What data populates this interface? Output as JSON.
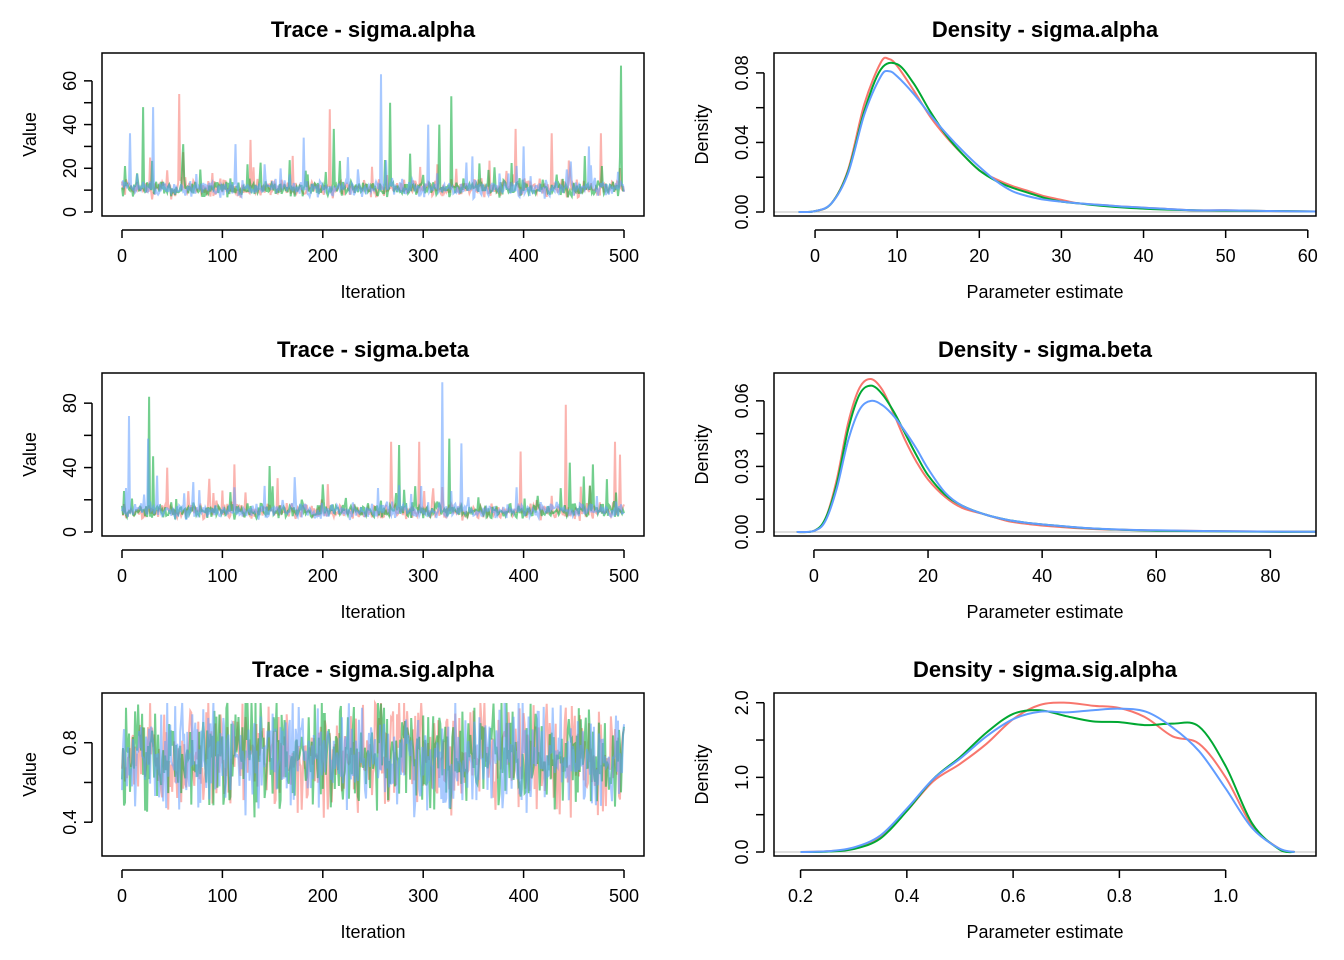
{
  "colors": {
    "chain1": "#F8766D",
    "chain2": "#00A832",
    "chain3": "#619CFF",
    "zero_line": "#bdbdbd"
  },
  "chart_data": [
    {
      "type": "line",
      "title": "Trace - sigma.alpha",
      "xlabel": "Iteration",
      "ylabel": "Value",
      "xlim": [
        0,
        500
      ],
      "ylim": [
        0,
        70
      ],
      "xticks": [
        0,
        100,
        200,
        300,
        400,
        500
      ],
      "yticks": [
        0,
        20,
        40,
        60
      ],
      "n_iter": 500,
      "typical": 10,
      "spread": 5,
      "floor": 2,
      "spikes": [
        {
          "chain": 3,
          "x": 8,
          "y": 36
        },
        {
          "chain": 2,
          "x": 21,
          "y": 48
        },
        {
          "chain": 3,
          "x": 31,
          "y": 48
        },
        {
          "chain": 1,
          "x": 57,
          "y": 54
        },
        {
          "chain": 2,
          "x": 61,
          "y": 31
        },
        {
          "chain": 3,
          "x": 113,
          "y": 31
        },
        {
          "chain": 1,
          "x": 128,
          "y": 33
        },
        {
          "chain": 3,
          "x": 181,
          "y": 34
        },
        {
          "chain": 1,
          "x": 207,
          "y": 47
        },
        {
          "chain": 2,
          "x": 211,
          "y": 38
        },
        {
          "chain": 3,
          "x": 258,
          "y": 63
        },
        {
          "chain": 2,
          "x": 267,
          "y": 50
        },
        {
          "chain": 3,
          "x": 305,
          "y": 40
        },
        {
          "chain": 2,
          "x": 316,
          "y": 40
        },
        {
          "chain": 2,
          "x": 328,
          "y": 53
        },
        {
          "chain": 1,
          "x": 392,
          "y": 38
        },
        {
          "chain": 3,
          "x": 400,
          "y": 30
        },
        {
          "chain": 1,
          "x": 428,
          "y": 36
        },
        {
          "chain": 3,
          "x": 465,
          "y": 30
        },
        {
          "chain": 1,
          "x": 477,
          "y": 36
        },
        {
          "chain": 2,
          "x": 497,
          "y": 67
        }
      ]
    },
    {
      "type": "line",
      "title": "Density - sigma.alpha",
      "xlabel": "Parameter estimate",
      "ylabel": "Density",
      "xlim": [
        -5,
        61
      ],
      "ylim": [
        0,
        0.088
      ],
      "xticks": [
        0,
        10,
        20,
        30,
        40,
        50,
        60
      ],
      "yticks": [
        0.0,
        0.04,
        0.08
      ],
      "ytick_labels": [
        "0.00",
        "0.04",
        "0.08"
      ],
      "series": [
        {
          "chain": 1,
          "x": [
            -2,
            0,
            2,
            4,
            6,
            8,
            9,
            10,
            12,
            14,
            16,
            18,
            20,
            22,
            24,
            26,
            28,
            30,
            32,
            35,
            38,
            42,
            46,
            50,
            55,
            61
          ],
          "y": [
            0,
            0.0005,
            0.005,
            0.024,
            0.062,
            0.086,
            0.088,
            0.084,
            0.07,
            0.055,
            0.043,
            0.033,
            0.024,
            0.019,
            0.015,
            0.012,
            0.009,
            0.007,
            0.005,
            0.004,
            0.003,
            0.002,
            0.001,
            0.001,
            0.0006,
            0.0003
          ]
        },
        {
          "chain": 2,
          "x": [
            -2,
            0,
            2,
            4,
            6,
            8,
            10,
            12,
            14,
            16,
            18,
            20,
            22,
            24,
            26,
            28,
            30,
            32,
            35,
            38,
            42,
            46,
            50,
            55,
            61
          ],
          "y": [
            0,
            0.0005,
            0.005,
            0.023,
            0.058,
            0.082,
            0.085,
            0.074,
            0.058,
            0.044,
            0.033,
            0.024,
            0.018,
            0.014,
            0.011,
            0.008,
            0.006,
            0.005,
            0.0035,
            0.0025,
            0.0015,
            0.001,
            0.0008,
            0.0006,
            0.0003
          ]
        },
        {
          "chain": 3,
          "x": [
            -2,
            0,
            2,
            4,
            6,
            8,
            9,
            10,
            12,
            14,
            16,
            18,
            20,
            22,
            24,
            26,
            28,
            30,
            32,
            35,
            38,
            42,
            46,
            50,
            55,
            61
          ],
          "y": [
            0,
            0.0005,
            0.005,
            0.022,
            0.056,
            0.078,
            0.081,
            0.078,
            0.068,
            0.056,
            0.045,
            0.035,
            0.026,
            0.018,
            0.012,
            0.009,
            0.007,
            0.006,
            0.005,
            0.004,
            0.003,
            0.002,
            0.001,
            0.001,
            0.0006,
            0.0003
          ]
        }
      ]
    },
    {
      "type": "line",
      "title": "Trace - sigma.beta",
      "xlabel": "Iteration",
      "ylabel": "Value",
      "xlim": [
        0,
        500
      ],
      "ylim": [
        0,
        95
      ],
      "xticks": [
        0,
        100,
        200,
        300,
        400,
        500
      ],
      "yticks": [
        0,
        40,
        80
      ],
      "n_iter": 500,
      "typical": 13,
      "spread": 6,
      "floor": 2,
      "spikes": [
        {
          "chain": 3,
          "x": 7,
          "y": 72
        },
        {
          "chain": 2,
          "x": 27,
          "y": 84
        },
        {
          "chain": 3,
          "x": 26,
          "y": 58
        },
        {
          "chain": 2,
          "x": 31,
          "y": 47
        },
        {
          "chain": 1,
          "x": 45,
          "y": 40
        },
        {
          "chain": 1,
          "x": 112,
          "y": 42
        },
        {
          "chain": 2,
          "x": 147,
          "y": 41
        },
        {
          "chain": 3,
          "x": 172,
          "y": 34
        },
        {
          "chain": 1,
          "x": 268,
          "y": 56
        },
        {
          "chain": 2,
          "x": 276,
          "y": 54
        },
        {
          "chain": 1,
          "x": 296,
          "y": 56
        },
        {
          "chain": 3,
          "x": 319,
          "y": 93
        },
        {
          "chain": 2,
          "x": 326,
          "y": 58
        },
        {
          "chain": 3,
          "x": 338,
          "y": 55
        },
        {
          "chain": 1,
          "x": 397,
          "y": 50
        },
        {
          "chain": 1,
          "x": 442,
          "y": 79
        },
        {
          "chain": 2,
          "x": 446,
          "y": 43
        },
        {
          "chain": 2,
          "x": 469,
          "y": 42
        },
        {
          "chain": 1,
          "x": 491,
          "y": 56
        },
        {
          "chain": 1,
          "x": 496,
          "y": 48
        }
      ]
    },
    {
      "type": "line",
      "title": "Density - sigma.beta",
      "xlabel": "Parameter estimate",
      "ylabel": "Density",
      "xlim": [
        -7,
        88
      ],
      "ylim": [
        0,
        0.07
      ],
      "xticks": [
        0,
        20,
        40,
        60,
        80
      ],
      "yticks": [
        0.0,
        0.03,
        0.06
      ],
      "ytick_labels": [
        "0.00",
        "0.03",
        "0.06"
      ],
      "series": [
        {
          "chain": 1,
          "x": [
            -3,
            0,
            2,
            4,
            6,
            8,
            10,
            12,
            14,
            16,
            18,
            20,
            23,
            26,
            30,
            34,
            38,
            42,
            48,
            54,
            60,
            70,
            80,
            88
          ],
          "y": [
            0,
            0.0005,
            0.006,
            0.024,
            0.05,
            0.066,
            0.07,
            0.065,
            0.054,
            0.042,
            0.032,
            0.024,
            0.016,
            0.011,
            0.008,
            0.005,
            0.0035,
            0.0025,
            0.0015,
            0.001,
            0.0007,
            0.0004,
            0.0002,
            0.0001
          ]
        },
        {
          "chain": 2,
          "x": [
            -3,
            0,
            2,
            4,
            6,
            8,
            10,
            12,
            14,
            16,
            18,
            20,
            23,
            26,
            30,
            34,
            38,
            42,
            48,
            54,
            60,
            70,
            80,
            88
          ],
          "y": [
            0,
            0.0005,
            0.006,
            0.022,
            0.047,
            0.063,
            0.067,
            0.063,
            0.055,
            0.045,
            0.035,
            0.026,
            0.017,
            0.012,
            0.008,
            0.0055,
            0.004,
            0.003,
            0.0017,
            0.001,
            0.0006,
            0.0003,
            0.0001,
            0.0001
          ]
        },
        {
          "chain": 3,
          "x": [
            -3,
            0,
            2,
            4,
            6,
            8,
            10,
            12,
            14,
            16,
            18,
            20,
            23,
            26,
            30,
            34,
            38,
            42,
            48,
            54,
            60,
            70,
            80,
            88
          ],
          "y": [
            0,
            0.0005,
            0.005,
            0.02,
            0.042,
            0.056,
            0.06,
            0.058,
            0.053,
            0.046,
            0.038,
            0.029,
            0.018,
            0.012,
            0.008,
            0.0055,
            0.004,
            0.003,
            0.0018,
            0.0011,
            0.0008,
            0.0004,
            0.0002,
            0.0001
          ]
        }
      ]
    },
    {
      "type": "line",
      "title": "Trace - sigma.sig.alpha",
      "xlabel": "Iteration",
      "ylabel": "Value",
      "xlim": [
        0,
        500
      ],
      "ylim": [
        0.25,
        1.02
      ],
      "xticks": [
        0,
        100,
        200,
        300,
        400,
        500
      ],
      "yticks": [
        0.4,
        0.8
      ],
      "ytick_labels": [
        "0.4",
        "0.8"
      ],
      "n_iter": 500,
      "range": [
        0.3,
        1.0
      ],
      "center": 0.7,
      "spikes": []
    },
    {
      "type": "line",
      "title": "Density - sigma.sig.alpha",
      "xlabel": "Parameter estimate",
      "ylabel": "Density",
      "xlim": [
        0.15,
        1.17
      ],
      "ylim": [
        0,
        2.05
      ],
      "xticks": [
        0.2,
        0.4,
        0.6,
        0.8,
        1.0
      ],
      "xtick_labels": [
        "0.2",
        "0.4",
        "0.6",
        "0.8",
        "1.0"
      ],
      "yticks": [
        0.0,
        1.0,
        2.0
      ],
      "ytick_labels": [
        "0.0",
        "1.0",
        "2.0"
      ],
      "series": [
        {
          "chain": 1,
          "x": [
            0.2,
            0.25,
            0.3,
            0.35,
            0.4,
            0.45,
            0.5,
            0.55,
            0.6,
            0.65,
            0.7,
            0.75,
            0.8,
            0.85,
            0.9,
            0.95,
            1.0,
            1.05,
            1.1,
            1.13
          ],
          "y": [
            0,
            0.01,
            0.05,
            0.2,
            0.55,
            0.95,
            1.18,
            1.45,
            1.78,
            1.97,
            2.0,
            1.96,
            1.93,
            1.8,
            1.55,
            1.45,
            1.0,
            0.35,
            0.05,
            0
          ]
        },
        {
          "chain": 2,
          "x": [
            0.2,
            0.25,
            0.3,
            0.35,
            0.4,
            0.45,
            0.5,
            0.55,
            0.6,
            0.65,
            0.7,
            0.75,
            0.8,
            0.85,
            0.9,
            0.95,
            1.0,
            1.05,
            1.1,
            1.13
          ],
          "y": [
            0,
            0.005,
            0.04,
            0.18,
            0.55,
            0.98,
            1.27,
            1.6,
            1.85,
            1.9,
            1.82,
            1.75,
            1.74,
            1.7,
            1.72,
            1.68,
            1.15,
            0.38,
            0.04,
            0
          ]
        },
        {
          "chain": 3,
          "x": [
            0.2,
            0.25,
            0.3,
            0.35,
            0.4,
            0.45,
            0.5,
            0.55,
            0.6,
            0.65,
            0.7,
            0.75,
            0.8,
            0.85,
            0.9,
            0.95,
            1.0,
            1.05,
            1.1,
            1.13
          ],
          "y": [
            0,
            0.01,
            0.06,
            0.22,
            0.58,
            0.98,
            1.25,
            1.55,
            1.78,
            1.88,
            1.87,
            1.9,
            1.92,
            1.88,
            1.67,
            1.35,
            0.85,
            0.32,
            0.05,
            0
          ]
        }
      ]
    }
  ]
}
